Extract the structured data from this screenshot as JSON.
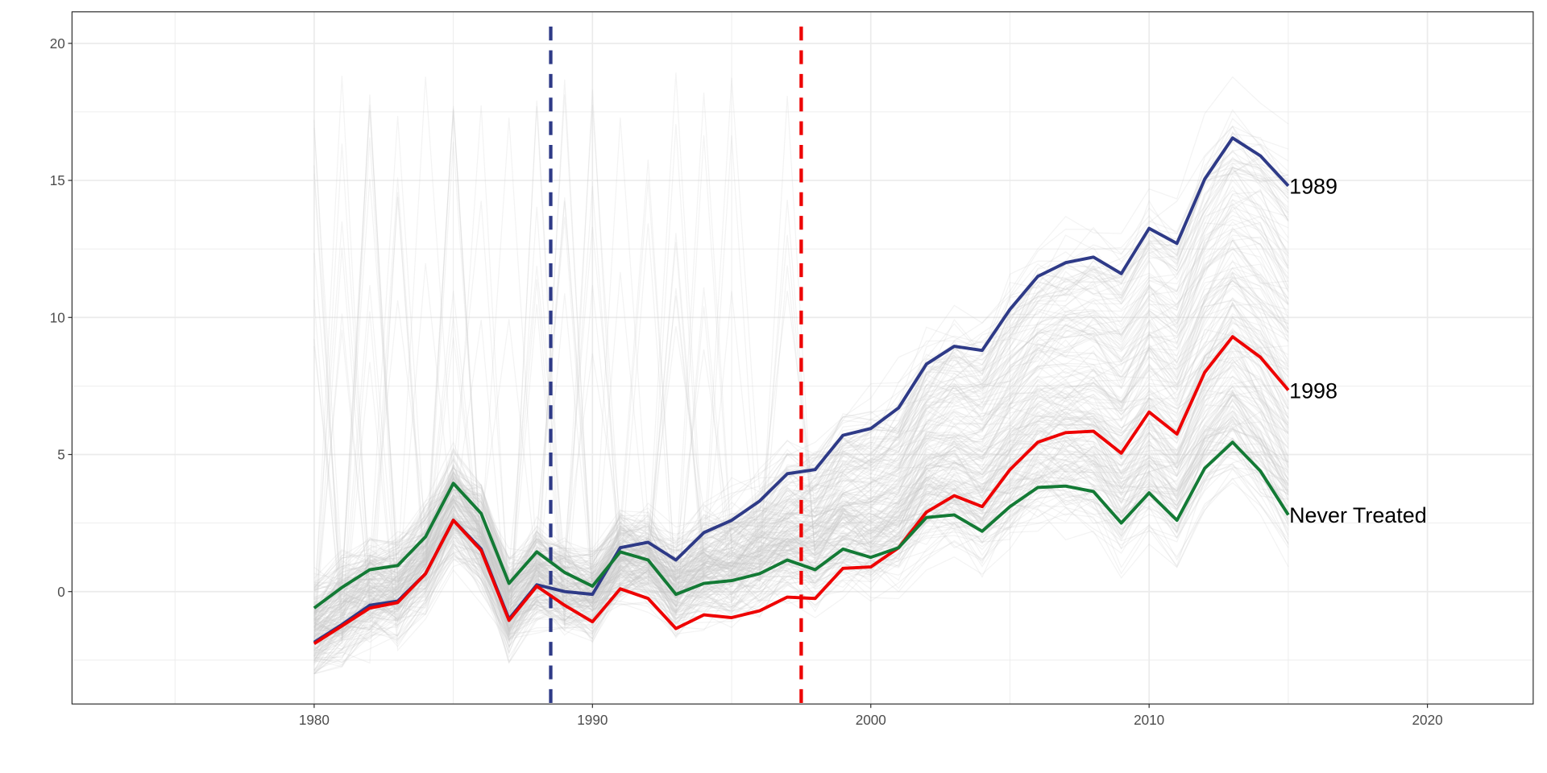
{
  "chart_data": {
    "type": "line",
    "title": "",
    "xlabel": "",
    "ylabel": "",
    "xlim": [
      1971.3,
      2023.8
    ],
    "ylim": [
      -4.1,
      21.15
    ],
    "xticks": [
      1980,
      1990,
      2000,
      2010,
      2020
    ],
    "yticks": [
      0,
      5,
      10,
      15,
      20
    ],
    "grid": true,
    "x": [
      1980,
      1981,
      1982,
      1983,
      1984,
      1985,
      1986,
      1987,
      1988,
      1989,
      1990,
      1991,
      1992,
      1993,
      1994,
      1995,
      1996,
      1997,
      1998,
      1999,
      2000,
      2001,
      2002,
      2003,
      2004,
      2005,
      2006,
      2007,
      2008,
      2009,
      2010,
      2011,
      2012,
      2013,
      2014,
      2015
    ],
    "series": [
      {
        "name": "1989",
        "color": "#2e3a87",
        "values": [
          -1.85,
          -1.2,
          -0.5,
          -0.35,
          0.65,
          2.6,
          1.55,
          -1.0,
          0.25,
          0.0,
          -0.1,
          1.6,
          1.8,
          1.15,
          2.15,
          2.6,
          3.3,
          4.3,
          4.45,
          5.7,
          5.95,
          6.7,
          8.3,
          8.95,
          8.8,
          10.3,
          11.5,
          12.0,
          12.2,
          11.6,
          13.25,
          12.7,
          15.05,
          16.55,
          15.9,
          14.8
        ]
      },
      {
        "name": "1998",
        "color": "#ee0000",
        "values": [
          -1.9,
          -1.25,
          -0.6,
          -0.4,
          0.65,
          2.6,
          1.5,
          -1.05,
          0.2,
          -0.5,
          -1.1,
          0.1,
          -0.25,
          -1.35,
          -0.85,
          -0.95,
          -0.7,
          -0.2,
          -0.25,
          0.85,
          0.9,
          1.6,
          2.9,
          3.5,
          3.1,
          4.45,
          5.45,
          5.8,
          5.85,
          5.05,
          6.55,
          5.75,
          8.0,
          9.3,
          8.55,
          7.35
        ]
      },
      {
        "name": "Never Treated",
        "color": "#137a35",
        "values": [
          -0.6,
          0.15,
          0.8,
          0.95,
          2.0,
          3.95,
          2.85,
          0.3,
          1.45,
          0.7,
          0.2,
          1.45,
          1.15,
          -0.1,
          0.3,
          0.4,
          0.65,
          1.15,
          0.8,
          1.55,
          1.25,
          1.6,
          2.7,
          2.8,
          2.2,
          3.1,
          3.8,
          3.85,
          3.65,
          2.5,
          3.6,
          2.6,
          4.5,
          5.45,
          4.4,
          2.8
        ]
      }
    ],
    "vlines": [
      {
        "x": 1988.5,
        "color": "#2e3a87",
        "style": "dashed"
      },
      {
        "x": 1997.5,
        "color": "#ee0000",
        "style": "dashed"
      }
    ],
    "background_lines_color": "#c8c8c8"
  }
}
